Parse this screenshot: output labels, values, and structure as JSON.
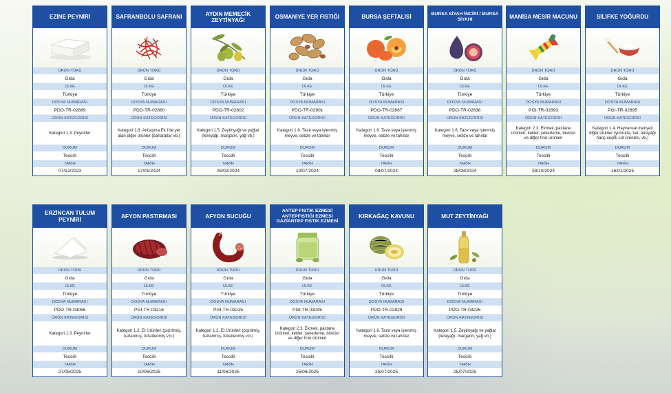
{
  "labels": {
    "type": "ÜRÜN TÜRÜ",
    "country": "ÜLKE",
    "file": "DOSYA NUMARASI",
    "category": "ÜRÜN KATEGORİSİ",
    "status": "DURUM",
    "date": "TARİH"
  },
  "products": [
    {
      "title": "EZİNE PEYNİRİ",
      "icon": "white-cheese-icon",
      "type": "Gıda",
      "country": "Türkiye",
      "file": "PDO-TR-02889",
      "category": "Kategori 1.3. Peynirler",
      "status": "Tescilli",
      "date": "07/12/2023"
    },
    {
      "title": "SAFRANBOLU SAFRANI",
      "icon": "saffron-icon",
      "type": "Gıda",
      "country": "Türkiye",
      "file": "PDO-TR-02860",
      "category": "Kategori 1.8. Antlaşma Ek I'de yer alan diğer ürünler (baharatlar vb.)",
      "status": "Tescilli",
      "date": "17/01/2024"
    },
    {
      "title": "AYDIN MEMECİK ZEYTİNYAĞI",
      "icon": "olive-icon",
      "type": "Gıda",
      "country": "Türkiye",
      "file": "PDO-TR-02802",
      "category": "Kategori 1.5. Zeytinyağı ve yağlar (tereyağı, margarin, yağ vb.)",
      "status": "Tescilli",
      "date": "05/02/2024"
    },
    {
      "title": "OSMANİYE YER FISTIĞI",
      "icon": "peanut-icon",
      "type": "Gıda",
      "country": "Türkiye",
      "file": "PDO-TR-02901",
      "category": "Kategori 1.6. Taze veya işlenmiş meyve, sebze ve tahıllar",
      "status": "Tescilli",
      "date": "10/07/2024"
    },
    {
      "title": "BURSA ŞEFTALİSİ",
      "icon": "peach-icon",
      "type": "Gıda",
      "country": "Türkiye",
      "file": "PDO-TR-02887",
      "category": "Kategori 1.6. Taze veya işlenmiş meyve, sebze ve tahıllar",
      "status": "Tescilli",
      "date": "08/07/2024"
    },
    {
      "title": "BURSA SİYAH İNCİRİ / BURSA SİYAHI",
      "icon": "fig-icon",
      "type": "Gıda",
      "country": "Türkiye",
      "file": "PDO-TR-02838",
      "category": "Kategori 1.6. Taze veya işlenmiş meyve, sebze ve tahıllar",
      "status": "Tescilli",
      "date": "28/08/2024"
    },
    {
      "title": "MANİSA MESİR MACUNU",
      "icon": "candy-icon",
      "type": "Gıda",
      "country": "Türkiye",
      "file": "PGI-TR-02893",
      "category": "Kategori 2.3. Ekmek, pastane ürünleri, kekler, şekerleme, bisküvi ve diğer fırın ürünleri",
      "status": "Tescilli",
      "date": "28/10/2024"
    },
    {
      "title": "SİLİFKE YOĞURDU",
      "icon": "yogurt-icon",
      "type": "Gıda",
      "country": "Türkiye",
      "file": "PGI-TR-02895",
      "category": "Kategori 1.4. Hayvansal menşeli diğer ürünler (yumurta, bal, tereyağı hariç çeşitli süt ürünleri, vb.)",
      "status": "Tescilli",
      "date": "16/01/2025"
    },
    {
      "title": "ERZİNCAN TULUM PEYNİRİ",
      "icon": "tulum-cheese-icon",
      "type": "Gıda",
      "country": "Türkiye",
      "file": "PDO-TR-03056",
      "category": "Kategori 1.3. Peynirler",
      "status": "Tescilli",
      "date": "27/05/2025"
    },
    {
      "title": "AFYON PASTIRMASI",
      "icon": "pastirma-icon",
      "type": "Gıda",
      "country": "Türkiye",
      "file": "PGI-TR-03216",
      "category": "Kategori 1.2. Et Ürünleri (pişirilmiş, tuzlanmış, tütsülenmiş v.b.)",
      "status": "Tescilli",
      "date": "10/06/2025"
    },
    {
      "title": "AFYON SUCUĞU",
      "icon": "sausage-icon",
      "type": "Gıda",
      "country": "Türkiye",
      "file": "PGI-TR-03215",
      "category": "Kategori 1.2. Et Ürünleri (pişirilmiş, tuzlanmış, tütsülenmiş v.b.)",
      "status": "Tescilli",
      "date": "11/06/2025"
    },
    {
      "title": "ANTEP FISTIK EZMESİ ANTEPFISTIĞI EZMESİ GAZİANTEP FISTIK EZMESİ",
      "icon": "pistachio-paste-icon",
      "type": "Gıda",
      "country": "Türkiye",
      "file": "PGI-TR-03045",
      "category": "Kategori 2.3. Ekmek, pastane ürünleri, kekler, şekerleme, bisküvi ve diğer fırın ürünleri",
      "status": "Tescilli",
      "date": "25/06/2025"
    },
    {
      "title": "KIRKAĞAÇ KAVUNU",
      "icon": "melon-icon",
      "type": "Gıda",
      "country": "Türkiye",
      "file": "PDO-TR-02829",
      "category": "Kategori 1.6. Taze veya işlenmiş meyve, sebze ve tahıllar",
      "status": "Tescilli",
      "date": "25/07/2025"
    },
    {
      "title": "MUT ZEYTİNYAĞI",
      "icon": "olive-oil-icon",
      "type": "Gıda",
      "country": "Türkiye",
      "file": "PDO-TR-03226",
      "category": "Kategori 1.5. Zeytinyağı ve yağlar (tereyağı, margarin, yağ vb.)",
      "status": "Tescilli",
      "date": "25/07/2025"
    }
  ],
  "colors": {
    "header": "#1e4fa3",
    "label_band": "#cfe0f2",
    "border": "#1f4f9f"
  }
}
